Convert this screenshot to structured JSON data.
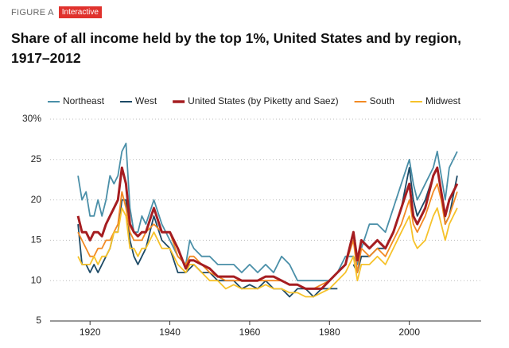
{
  "figure_label": "FIGURE A",
  "badge": "Interactive",
  "chart_data": {
    "type": "line",
    "title": "Share of all income held by the top 1%, United States and by region, 1917–2012",
    "x": [
      1917,
      1918,
      1919,
      1920,
      1921,
      1922,
      1923,
      1924,
      1925,
      1926,
      1927,
      1928,
      1929,
      1930,
      1931,
      1932,
      1933,
      1934,
      1936,
      1938,
      1940,
      1942,
      1944,
      1945,
      1946,
      1948,
      1950,
      1952,
      1954,
      1956,
      1958,
      1960,
      1962,
      1964,
      1966,
      1968,
      1970,
      1972,
      1974,
      1976,
      1978,
      1980,
      1982,
      1984,
      1986,
      1987,
      1988,
      1990,
      1992,
      1994,
      1996,
      1998,
      2000,
      2001,
      2002,
      2004,
      2006,
      2007,
      2008,
      2009,
      2010,
      2012
    ],
    "series": [
      {
        "name": "Northeast",
        "color": "#4a8fa8",
        "values": [
          23,
          20,
          21,
          18,
          18,
          20,
          18,
          20,
          23,
          22,
          23,
          26,
          27,
          19,
          16,
          16,
          18,
          17,
          20,
          17,
          15,
          13,
          12,
          15,
          14,
          13,
          13,
          12,
          12,
          12,
          11,
          12,
          11,
          12,
          11,
          13,
          12,
          10,
          10,
          10,
          10,
          10,
          11,
          13,
          13,
          12,
          14,
          17,
          17,
          16,
          19,
          22,
          25,
          22,
          20,
          22,
          24,
          26,
          23,
          20,
          24,
          26
        ]
      },
      {
        "name": "West",
        "color": "#1d4a66",
        "values": [
          17,
          12,
          12,
          11,
          12,
          11,
          12,
          13,
          14,
          16,
          16,
          20,
          20,
          15,
          13,
          12,
          13,
          14,
          18,
          15,
          14,
          11,
          11,
          11.5,
          12,
          11,
          11,
          10,
          10,
          10,
          9,
          9.5,
          9,
          10,
          9,
          9,
          8,
          9,
          9,
          8,
          9,
          9,
          9,
          null,
          12,
          11,
          13,
          13,
          14,
          14,
          16,
          19,
          24,
          20,
          18,
          20,
          23,
          24,
          21,
          17,
          18,
          23
        ]
      },
      {
        "name": "United States (by Piketty and Saez)",
        "color": "#a51d21",
        "values": [
          18,
          16,
          16,
          15,
          16,
          16,
          15.5,
          17,
          18,
          19,
          20,
          24,
          22,
          17,
          16,
          15.5,
          16,
          16,
          19,
          16,
          16,
          14,
          11.5,
          12.5,
          12.5,
          12,
          11.5,
          10.5,
          10.5,
          10.5,
          10,
          10,
          10,
          10.5,
          10.5,
          10,
          9.5,
          9.5,
          9,
          9,
          9,
          10,
          11,
          12,
          16,
          12.5,
          15,
          14,
          15,
          14,
          16,
          19,
          22,
          18,
          17,
          19,
          23,
          24,
          21,
          18,
          20,
          22
        ]
      },
      {
        "name": "South",
        "color": "#f28a24",
        "values": [
          16,
          15,
          14,
          13,
          13,
          14,
          14,
          15,
          15,
          16,
          17,
          21,
          19,
          16,
          15,
          15,
          15,
          16,
          17,
          16,
          16,
          13,
          12,
          13,
          13,
          12,
          11,
          10.5,
          10,
          10,
          10,
          10,
          10,
          10,
          10,
          10,
          9.5,
          9.5,
          9,
          9,
          9.5,
          10,
          11,
          12,
          15,
          11,
          14,
          13,
          14,
          13,
          15,
          17,
          20,
          17,
          16,
          18,
          21,
          22,
          20,
          17,
          18,
          21
        ]
      },
      {
        "name": "Midwest",
        "color": "#f6c22a",
        "values": [
          13,
          12,
          12,
          12,
          13,
          12,
          13,
          13,
          14,
          16,
          16,
          19,
          18,
          14,
          14,
          13,
          14,
          14,
          16,
          14,
          14,
          12,
          11,
          12,
          12,
          11,
          10,
          10,
          9,
          9.5,
          9,
          9,
          9,
          9.5,
          9,
          9,
          8.5,
          8.5,
          8,
          8,
          8.5,
          9,
          10,
          11,
          13,
          10,
          12,
          12,
          13,
          12,
          14,
          16,
          18,
          15,
          14,
          15,
          18,
          19,
          17,
          15,
          17,
          19
        ]
      }
    ],
    "xlim": [
      1910,
      2018
    ],
    "xticks": [
      1920,
      1940,
      1960,
      1980,
      2000
    ],
    "ylim": [
      5,
      30
    ],
    "yticks": [
      5,
      10,
      15,
      20,
      {
        "value": 30,
        "label": "30%"
      },
      25
    ],
    "grid": true,
    "legend": "top"
  }
}
